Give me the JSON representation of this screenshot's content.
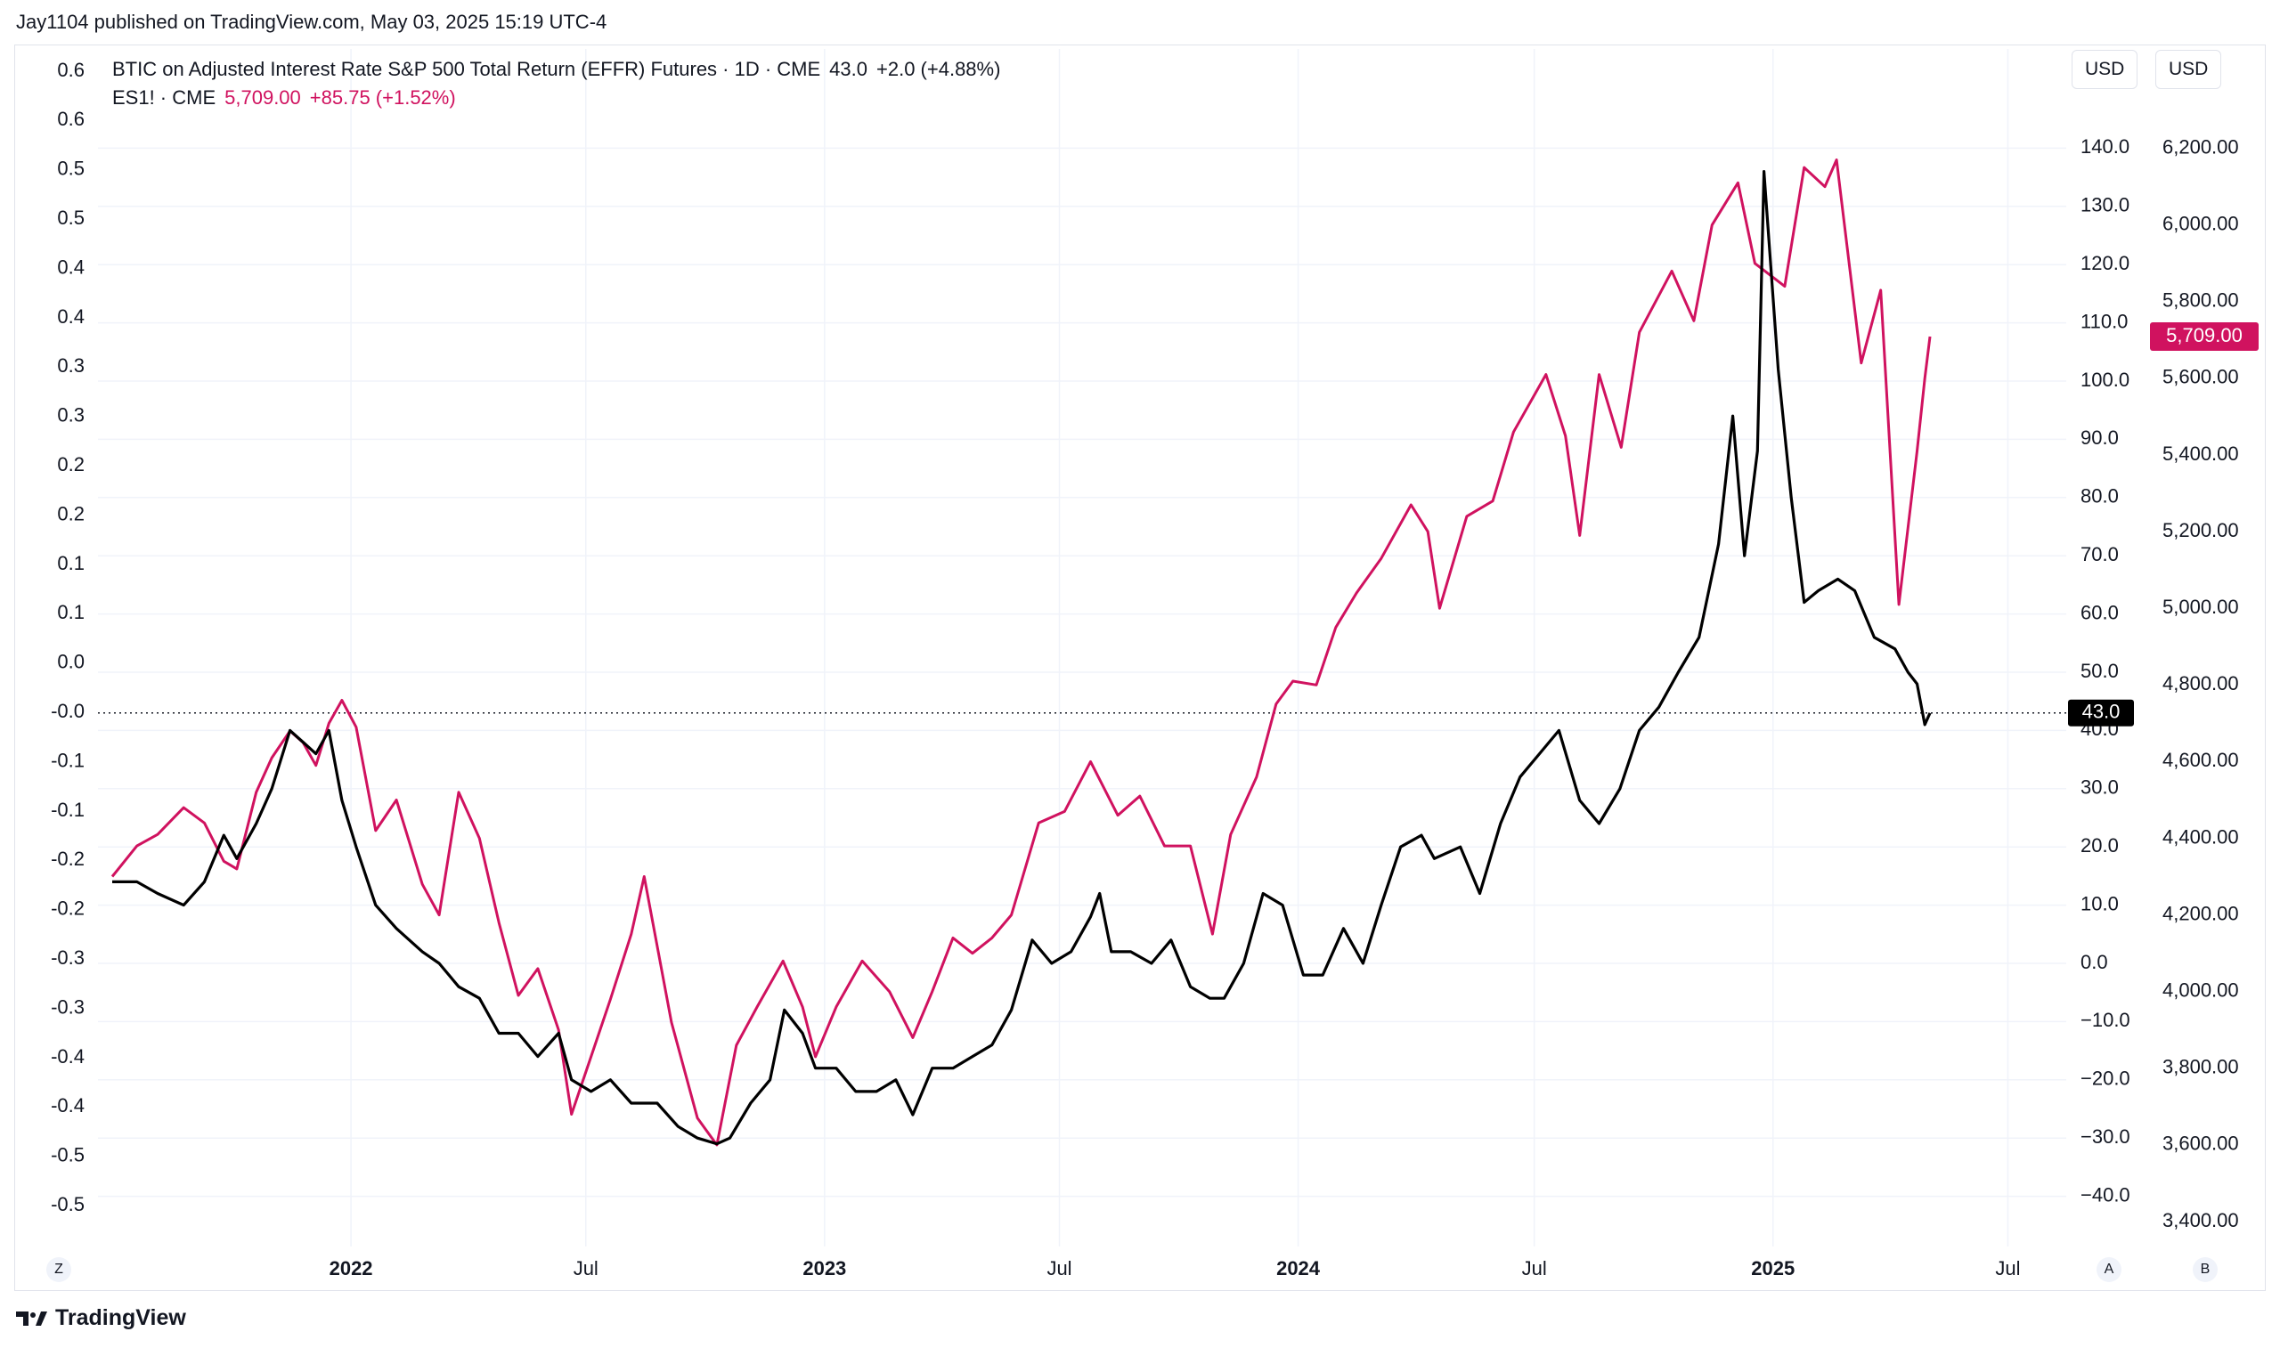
{
  "header": {
    "publisher": "Jay1104 published on TradingView.com, May 03, 2025 15:19 UTC-4"
  },
  "legend": {
    "series1_title": "BTIC on Adjusted Interest Rate S&P 500 Total Return (EFFR) Futures · 1D · CME",
    "series1_last": "43.0",
    "series1_change": "+2.0 (+4.88%)",
    "series2_title": "ES1! · CME",
    "series2_last": "5,709.00",
    "series2_change": "+85.75 (+1.52%)"
  },
  "buttons": {
    "usd_a": "USD",
    "usd_b": "USD",
    "corner_z": "Z",
    "corner_a": "A",
    "corner_b": "B"
  },
  "footer": {
    "brand": "TradingView"
  },
  "colors": {
    "btic": "#000000",
    "es": "#d0125f",
    "grid": "#f0f3fa",
    "badge_btic": "#000000",
    "badge_es": "#d0125f"
  },
  "chart_data": {
    "type": "line",
    "x_ticks": [
      {
        "label": "2022",
        "date": "2022-01-01",
        "bold": true
      },
      {
        "label": "Jul",
        "date": "2022-07-01",
        "bold": false
      },
      {
        "label": "2023",
        "date": "2023-01-01",
        "bold": true
      },
      {
        "label": "Jul",
        "date": "2023-07-01",
        "bold": false
      },
      {
        "label": "2024",
        "date": "2024-01-01",
        "bold": true
      },
      {
        "label": "Jul",
        "date": "2024-07-01",
        "bold": false
      },
      {
        "label": "2025",
        "date": "2025-01-01",
        "bold": true
      },
      {
        "label": "Jul",
        "date": "2025-07-01",
        "bold": false
      }
    ],
    "xlim": [
      "2021-06-20",
      "2025-08-15"
    ],
    "left_axis": {
      "tick_labels": [
        "0.6",
        "0.6",
        "0.5",
        "0.5",
        "0.4",
        "0.4",
        "0.3",
        "0.3",
        "0.2",
        "0.2",
        "0.1",
        "0.1",
        "0.0",
        "-0.0",
        "-0.1",
        "-0.1",
        "-0.2",
        "-0.2",
        "-0.3",
        "-0.3",
        "-0.4",
        "-0.4",
        "-0.5",
        "-0.5"
      ]
    },
    "axis_A": {
      "ylim": [
        -45,
        150
      ],
      "ticks": [
        "140.0",
        "130.0",
        "120.0",
        "110.0",
        "100.0",
        "90.0",
        "80.0",
        "70.0",
        "60.0",
        "50.0",
        "40.0",
        "30.0",
        "20.0",
        "10.0",
        "0.0",
        "−10.0",
        "−20.0",
        "−30.0",
        "−40.0"
      ],
      "tick_values": [
        140,
        130,
        120,
        110,
        100,
        90,
        80,
        70,
        60,
        50,
        40,
        30,
        20,
        10,
        0,
        -10,
        -20,
        -30,
        -40
      ],
      "last_badge": "43.0"
    },
    "axis_B": {
      "ylim": [
        3300,
        6320
      ],
      "ticks": [
        "6,200.00",
        "6,000.00",
        "5,800.00",
        "5,600.00",
        "5,400.00",
        "5,200.00",
        "5,000.00",
        "4,800.00",
        "4,600.00",
        "4,400.00",
        "4,200.00",
        "4,000.00",
        "3,800.00",
        "3,600.00",
        "3,400.00"
      ],
      "tick_values": [
        6200,
        6000,
        5800,
        5600,
        5400,
        5200,
        5000,
        4800,
        4600,
        4400,
        4200,
        4000,
        3800,
        3600,
        3400
      ],
      "last_badge": "5,709.00"
    },
    "series": [
      {
        "axis": "A",
        "points": [
          [
            "2021-07-01",
            14
          ],
          [
            "2021-07-20",
            14
          ],
          [
            "2021-08-05",
            12
          ],
          [
            "2021-08-25",
            10
          ],
          [
            "2021-09-10",
            14
          ],
          [
            "2021-09-25",
            22
          ],
          [
            "2021-10-05",
            18
          ],
          [
            "2021-10-20",
            24
          ],
          [
            "2021-11-01",
            30
          ],
          [
            "2021-11-15",
            40
          ],
          [
            "2021-11-25",
            38
          ],
          [
            "2021-12-05",
            36
          ],
          [
            "2021-12-15",
            40
          ],
          [
            "2021-12-25",
            28
          ],
          [
            "2022-01-05",
            20
          ],
          [
            "2022-01-20",
            10
          ],
          [
            "2022-02-05",
            6
          ],
          [
            "2022-02-25",
            2
          ],
          [
            "2022-03-10",
            0
          ],
          [
            "2022-03-25",
            -4
          ],
          [
            "2022-04-10",
            -6
          ],
          [
            "2022-04-25",
            -12
          ],
          [
            "2022-05-10",
            -12
          ],
          [
            "2022-05-25",
            -16
          ],
          [
            "2022-06-10",
            -12
          ],
          [
            "2022-06-20",
            -20
          ],
          [
            "2022-07-05",
            -22
          ],
          [
            "2022-07-20",
            -20
          ],
          [
            "2022-08-05",
            -24
          ],
          [
            "2022-08-25",
            -24
          ],
          [
            "2022-09-10",
            -28
          ],
          [
            "2022-09-25",
            -30
          ],
          [
            "2022-10-10",
            -31
          ],
          [
            "2022-10-20",
            -30
          ],
          [
            "2022-11-05",
            -24
          ],
          [
            "2022-11-20",
            -20
          ],
          [
            "2022-12-01",
            -8
          ],
          [
            "2022-12-15",
            -12
          ],
          [
            "2022-12-25",
            -18
          ],
          [
            "2023-01-10",
            -18
          ],
          [
            "2023-01-25",
            -22
          ],
          [
            "2023-02-10",
            -22
          ],
          [
            "2023-02-25",
            -20
          ],
          [
            "2023-03-10",
            -26
          ],
          [
            "2023-03-25",
            -18
          ],
          [
            "2023-04-10",
            -18
          ],
          [
            "2023-04-25",
            -16
          ],
          [
            "2023-05-10",
            -14
          ],
          [
            "2023-05-25",
            -8
          ],
          [
            "2023-06-10",
            4
          ],
          [
            "2023-06-25",
            0
          ],
          [
            "2023-07-10",
            2
          ],
          [
            "2023-07-25",
            8
          ],
          [
            "2023-08-01",
            12
          ],
          [
            "2023-08-10",
            2
          ],
          [
            "2023-08-25",
            2
          ],
          [
            "2023-09-10",
            0
          ],
          [
            "2023-09-25",
            4
          ],
          [
            "2023-10-10",
            -4
          ],
          [
            "2023-10-25",
            -6
          ],
          [
            "2023-11-05",
            -6
          ],
          [
            "2023-11-20",
            0
          ],
          [
            "2023-12-05",
            12
          ],
          [
            "2023-12-20",
            10
          ],
          [
            "2024-01-05",
            -2
          ],
          [
            "2024-01-20",
            -2
          ],
          [
            "2024-02-05",
            6
          ],
          [
            "2024-02-20",
            0
          ],
          [
            "2024-03-05",
            10
          ],
          [
            "2024-03-20",
            20
          ],
          [
            "2024-04-05",
            22
          ],
          [
            "2024-04-15",
            18
          ],
          [
            "2024-05-05",
            20
          ],
          [
            "2024-05-20",
            12
          ],
          [
            "2024-06-05",
            24
          ],
          [
            "2024-06-20",
            32
          ],
          [
            "2024-07-05",
            36
          ],
          [
            "2024-07-20",
            40
          ],
          [
            "2024-08-05",
            28
          ],
          [
            "2024-08-20",
            24
          ],
          [
            "2024-09-05",
            30
          ],
          [
            "2024-09-20",
            40
          ],
          [
            "2024-10-05",
            44
          ],
          [
            "2024-10-20",
            50
          ],
          [
            "2024-11-05",
            56
          ],
          [
            "2024-11-20",
            72
          ],
          [
            "2024-12-01",
            94
          ],
          [
            "2024-12-10",
            70
          ],
          [
            "2024-12-20",
            88
          ],
          [
            "2024-12-25",
            136
          ],
          [
            "2025-01-05",
            102
          ],
          [
            "2025-01-15",
            80
          ],
          [
            "2025-01-25",
            62
          ],
          [
            "2025-02-05",
            64
          ],
          [
            "2025-02-20",
            66
          ],
          [
            "2025-03-05",
            64
          ],
          [
            "2025-03-20",
            56
          ],
          [
            "2025-04-05",
            54
          ],
          [
            "2025-04-15",
            50
          ],
          [
            "2025-04-22",
            48
          ],
          [
            "2025-04-28",
            41
          ],
          [
            "2025-05-02",
            43
          ]
        ]
      },
      {
        "axis": "B",
        "points": [
          [
            "2021-07-01",
            4300
          ],
          [
            "2021-07-20",
            4380
          ],
          [
            "2021-08-05",
            4410
          ],
          [
            "2021-08-25",
            4480
          ],
          [
            "2021-09-10",
            4440
          ],
          [
            "2021-09-25",
            4340
          ],
          [
            "2021-10-05",
            4320
          ],
          [
            "2021-10-20",
            4520
          ],
          [
            "2021-11-01",
            4610
          ],
          [
            "2021-11-15",
            4680
          ],
          [
            "2021-11-25",
            4650
          ],
          [
            "2021-12-05",
            4590
          ],
          [
            "2021-12-15",
            4700
          ],
          [
            "2021-12-25",
            4760
          ],
          [
            "2022-01-05",
            4690
          ],
          [
            "2022-01-20",
            4420
          ],
          [
            "2022-02-05",
            4500
          ],
          [
            "2022-02-25",
            4280
          ],
          [
            "2022-03-10",
            4200
          ],
          [
            "2022-03-25",
            4520
          ],
          [
            "2022-04-10",
            4400
          ],
          [
            "2022-04-25",
            4180
          ],
          [
            "2022-05-10",
            3990
          ],
          [
            "2022-05-25",
            4060
          ],
          [
            "2022-06-10",
            3900
          ],
          [
            "2022-06-20",
            3680
          ],
          [
            "2022-07-05",
            3830
          ],
          [
            "2022-07-20",
            3980
          ],
          [
            "2022-08-05",
            4150
          ],
          [
            "2022-08-15",
            4300
          ],
          [
            "2022-09-05",
            3920
          ],
          [
            "2022-09-25",
            3670
          ],
          [
            "2022-10-10",
            3600
          ],
          [
            "2022-10-25",
            3860
          ],
          [
            "2022-11-10",
            3960
          ],
          [
            "2022-11-30",
            4080
          ],
          [
            "2022-12-15",
            3960
          ],
          [
            "2022-12-25",
            3830
          ],
          [
            "2023-01-10",
            3960
          ],
          [
            "2023-01-30",
            4080
          ],
          [
            "2023-02-20",
            4000
          ],
          [
            "2023-03-10",
            3880
          ],
          [
            "2023-03-25",
            4000
          ],
          [
            "2023-04-10",
            4140
          ],
          [
            "2023-04-25",
            4100
          ],
          [
            "2023-05-10",
            4140
          ],
          [
            "2023-05-25",
            4200
          ],
          [
            "2023-06-15",
            4440
          ],
          [
            "2023-07-05",
            4470
          ],
          [
            "2023-07-25",
            4600
          ],
          [
            "2023-08-15",
            4460
          ],
          [
            "2023-09-01",
            4510
          ],
          [
            "2023-09-20",
            4380
          ],
          [
            "2023-10-10",
            4380
          ],
          [
            "2023-10-27",
            4150
          ],
          [
            "2023-11-10",
            4410
          ],
          [
            "2023-11-30",
            4560
          ],
          [
            "2023-12-15",
            4750
          ],
          [
            "2023-12-28",
            4810
          ],
          [
            "2024-01-15",
            4800
          ],
          [
            "2024-01-30",
            4950
          ],
          [
            "2024-02-15",
            5040
          ],
          [
            "2024-03-05",
            5130
          ],
          [
            "2024-03-28",
            5270
          ],
          [
            "2024-04-10",
            5200
          ],
          [
            "2024-04-19",
            5000
          ],
          [
            "2024-05-10",
            5240
          ],
          [
            "2024-05-30",
            5280
          ],
          [
            "2024-06-15",
            5460
          ],
          [
            "2024-07-10",
            5610
          ],
          [
            "2024-07-25",
            5450
          ],
          [
            "2024-08-05",
            5190
          ],
          [
            "2024-08-20",
            5610
          ],
          [
            "2024-09-06",
            5420
          ],
          [
            "2024-09-20",
            5720
          ],
          [
            "2024-10-15",
            5880
          ],
          [
            "2024-11-01",
            5750
          ],
          [
            "2024-11-15",
            6000
          ],
          [
            "2024-12-05",
            6110
          ],
          [
            "2024-12-18",
            5900
          ],
          [
            "2025-01-10",
            5840
          ],
          [
            "2025-01-25",
            6150
          ],
          [
            "2025-02-10",
            6100
          ],
          [
            "2025-02-19",
            6170
          ],
          [
            "2025-03-10",
            5640
          ],
          [
            "2025-03-25",
            5830
          ],
          [
            "2025-04-08",
            5010
          ],
          [
            "2025-04-22",
            5410
          ],
          [
            "2025-04-28",
            5600
          ],
          [
            "2025-05-02",
            5709
          ]
        ]
      }
    ]
  }
}
